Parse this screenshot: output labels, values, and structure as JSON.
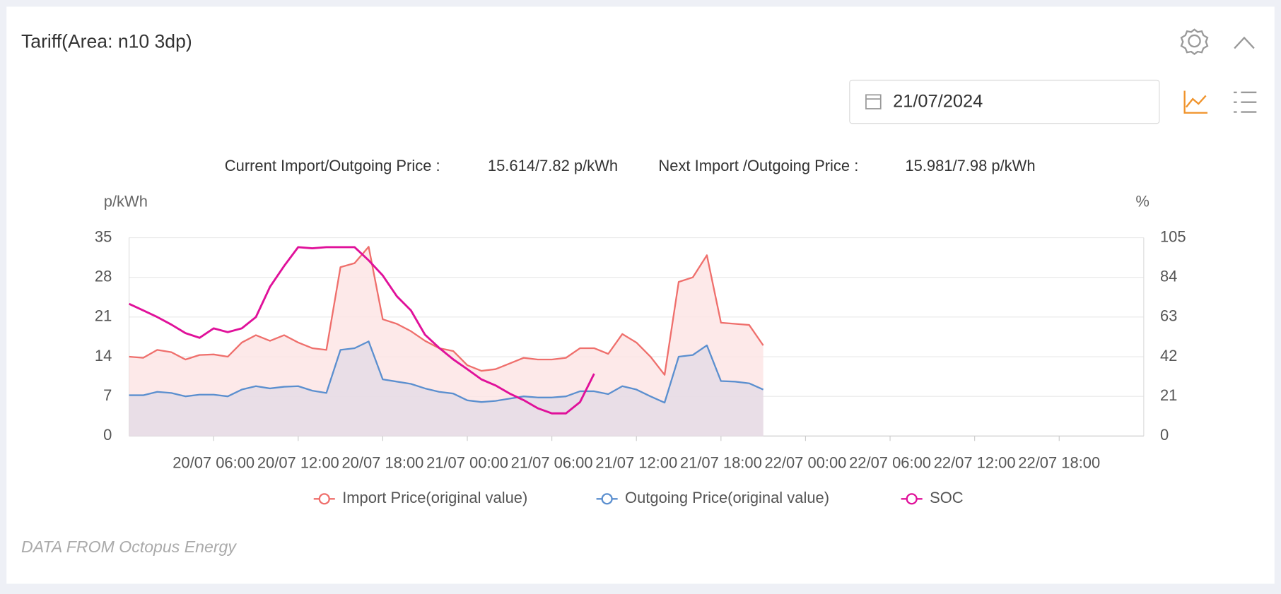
{
  "header": {
    "title": "Tariff(Area: n10 3dp)",
    "date": "21/07/2024"
  },
  "chart_data": {
    "type": "line",
    "info": {
      "current_label": "Current Import/Outgoing Price :",
      "current_value": "15.614/7.82 p/kWh",
      "next_label": "Next Import /Outgoing Price :",
      "next_value": "15.981/7.98 p/kWh"
    },
    "y_label": "p/kWh",
    "y2_label": "%",
    "categories": [
      null,
      null,
      null,
      null,
      null,
      null,
      "20/07 06:00",
      null,
      null,
      null,
      null,
      null,
      "20/07 12:00",
      null,
      null,
      null,
      null,
      null,
      "20/07 18:00",
      null,
      null,
      null,
      null,
      null,
      "21/07 00:00",
      null,
      null,
      null,
      null,
      null,
      "21/07 06:00",
      null,
      null,
      null,
      null,
      null,
      "21/07 12:00",
      null,
      null,
      null,
      null,
      null,
      "21/07 18:00",
      null,
      null,
      null,
      null,
      null,
      "22/07 00:00",
      null,
      null,
      null,
      null,
      null,
      "22/07 06:00",
      null,
      null,
      null,
      null,
      null,
      "22/07 12:00",
      null,
      null,
      null,
      null,
      null,
      "22/07 18:00",
      null,
      null,
      null,
      null,
      null,
      null
    ],
    "series": [
      {
        "name": "Import Price(original value)",
        "color": "#ef6f6c",
        "area": "#fde4e4",
        "values": [
          14,
          13.8,
          15.2,
          14.8,
          13.5,
          14.3,
          14.4,
          14,
          16.5,
          17.8,
          16.8,
          17.8,
          16.5,
          15.5,
          15.2,
          29.8,
          30.5,
          33.4,
          20.6,
          19.8,
          18.5,
          16.8,
          15.5,
          15,
          12.5,
          11.5,
          11.8,
          12.8,
          13.8,
          13.5,
          13.5,
          13.8,
          15.5,
          15.5,
          14.5,
          18,
          16.5,
          14,
          10.8,
          27.2,
          28,
          31.9,
          20,
          19.8,
          19.6,
          16,
          null,
          null,
          null,
          null,
          null,
          null,
          null,
          null,
          null,
          null,
          null,
          null,
          null,
          null,
          null,
          null,
          null,
          null,
          null,
          null,
          null,
          null,
          null,
          null,
          null,
          null,
          null
        ]
      },
      {
        "name": "Outgoing Price(original value)",
        "color": "#5b8fcf",
        "area": "#e4dbe6",
        "values": [
          7.2,
          7.2,
          7.8,
          7.6,
          7,
          7.3,
          7.3,
          7,
          8.2,
          8.8,
          8.4,
          8.7,
          8.8,
          8,
          7.6,
          15.2,
          15.5,
          16.7,
          10,
          9.6,
          9.2,
          8.4,
          7.8,
          7.5,
          6.3,
          6,
          6.2,
          6.6,
          7,
          6.8,
          6.8,
          7,
          7.9,
          7.9,
          7.4,
          8.8,
          8.2,
          7,
          5.9,
          14,
          14.3,
          16,
          9.7,
          9.6,
          9.3,
          8.2,
          null,
          null,
          null,
          null,
          null,
          null,
          null,
          null,
          null,
          null,
          null,
          null,
          null,
          null,
          null,
          null,
          null,
          null,
          null,
          null,
          null,
          null,
          null,
          null,
          null,
          null,
          null
        ]
      },
      {
        "name": "SOC",
        "color": "#e0119a",
        "axis": "y2",
        "values": [
          70,
          66.5,
          63,
          59,
          54.5,
          52,
          57,
          55,
          57,
          63,
          79,
          90,
          100,
          99.4,
          100,
          100,
          100,
          93,
          85,
          74,
          66.5,
          53.6,
          46.7,
          40.6,
          35.4,
          30,
          26.8,
          22.5,
          19,
          14.7,
          12,
          12,
          18,
          33,
          null,
          null,
          null,
          null,
          null,
          null,
          null,
          null,
          null,
          null,
          null,
          null,
          null,
          null,
          null,
          null,
          null,
          null,
          null,
          null,
          null,
          null,
          null,
          null,
          null,
          null,
          null,
          null,
          null,
          null,
          null,
          null,
          null,
          null,
          null,
          null,
          null,
          null,
          null
        ]
      }
    ],
    "ylim": [
      0,
      35
    ],
    "yticks": [
      0,
      7,
      14,
      21,
      28,
      35
    ],
    "y2lim": [
      0,
      105
    ],
    "y2ticks": [
      0,
      21,
      42,
      63,
      84,
      105
    ],
    "grid": true
  },
  "footer": "DATA FROM Octopus Energy"
}
